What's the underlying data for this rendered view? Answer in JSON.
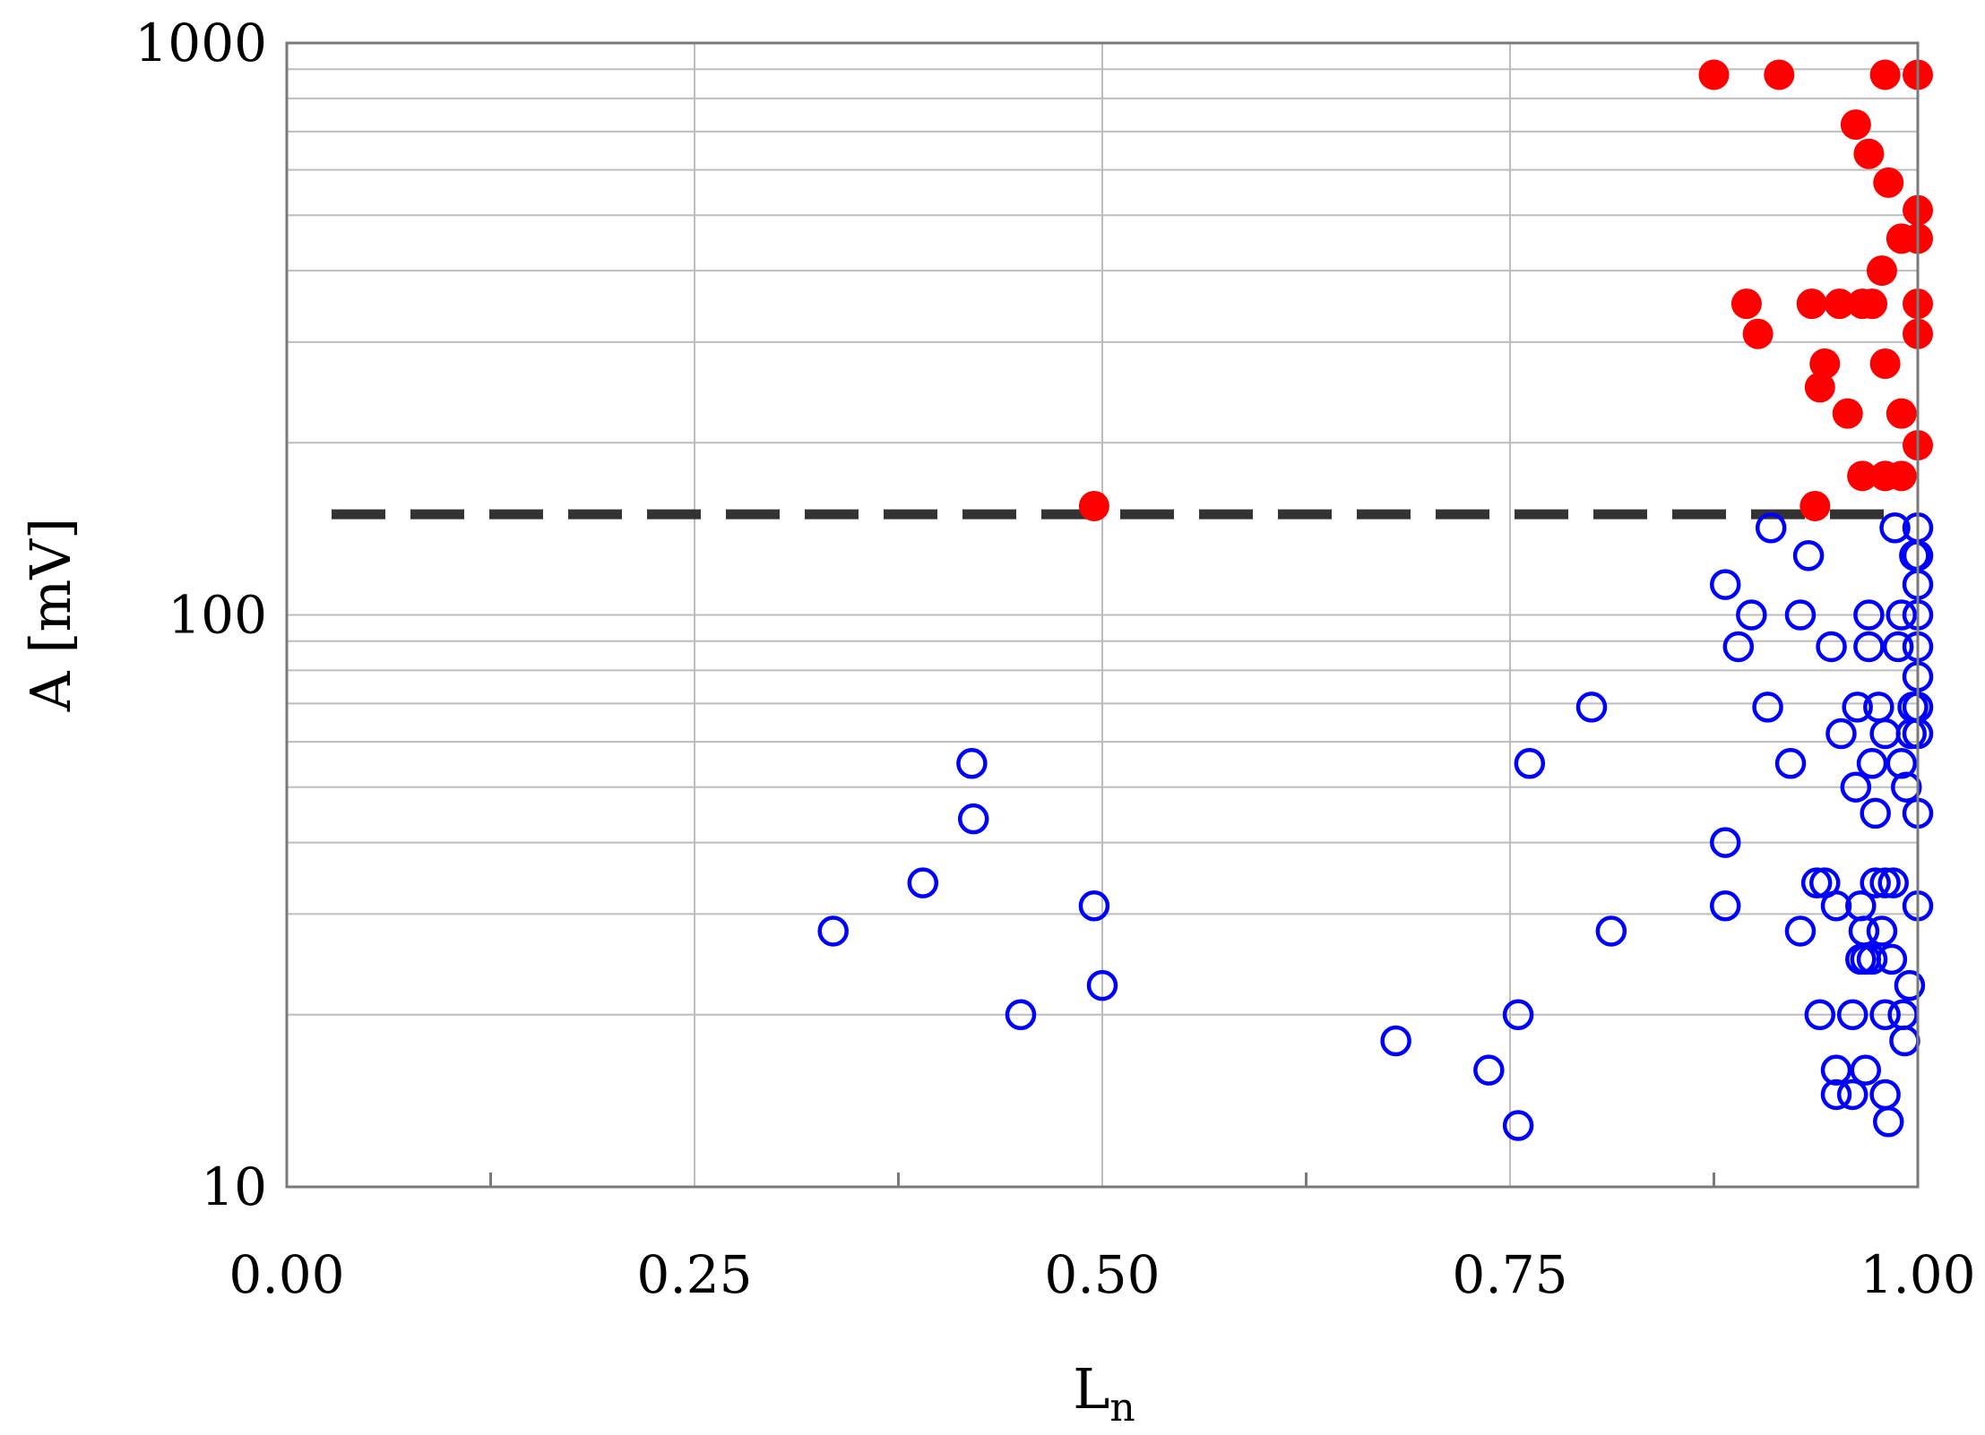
{
  "chart_data": {
    "type": "scatter",
    "title": "",
    "xlabel": "L",
    "xlabel_sub": "n",
    "ylabel": "A [mV]",
    "xlim": [
      0,
      1
    ],
    "ylim": [
      10,
      1000
    ],
    "yscale": "log",
    "grid": true,
    "x_ticks": [
      "0.00",
      "0.25",
      "0.50",
      "0.75",
      "1.00"
    ],
    "y_ticks": [
      "10",
      "100",
      "1000"
    ],
    "threshold": {
      "y": 150,
      "color": "#333333",
      "style": "dashed"
    },
    "series": [
      {
        "marker": "filled-circle",
        "color": "#ff0000",
        "points": [
          [
            0.875,
            880
          ],
          [
            0.915,
            880
          ],
          [
            0.98,
            880
          ],
          [
            1.0,
            880
          ],
          [
            0.962,
            720
          ],
          [
            0.97,
            640
          ],
          [
            0.982,
            570
          ],
          [
            1.0,
            510
          ],
          [
            0.99,
            455
          ],
          [
            1.0,
            455
          ],
          [
            0.978,
            400
          ],
          [
            0.895,
            350
          ],
          [
            0.935,
            350
          ],
          [
            0.952,
            350
          ],
          [
            0.966,
            350
          ],
          [
            0.972,
            350
          ],
          [
            1.0,
            350
          ],
          [
            0.902,
            310
          ],
          [
            1.0,
            310
          ],
          [
            0.943,
            275
          ],
          [
            0.98,
            275
          ],
          [
            0.94,
            250
          ],
          [
            0.957,
            225
          ],
          [
            0.99,
            225
          ],
          [
            1.0,
            198
          ],
          [
            0.966,
            175
          ],
          [
            0.98,
            175
          ],
          [
            0.99,
            175
          ],
          [
            0.495,
            155
          ],
          [
            0.937,
            155
          ]
        ]
      },
      {
        "marker": "open-circle",
        "color": "#0000ff",
        "points": [
          [
            0.335,
            28
          ],
          [
            0.39,
            34
          ],
          [
            0.42,
            55
          ],
          [
            0.421,
            44
          ],
          [
            0.45,
            20
          ],
          [
            0.495,
            31
          ],
          [
            0.5,
            22.5
          ],
          [
            0.68,
            18
          ],
          [
            0.737,
            16
          ],
          [
            0.755,
            20
          ],
          [
            0.755,
            12.8
          ],
          [
            0.762,
            55
          ],
          [
            0.8,
            69
          ],
          [
            0.812,
            28
          ],
          [
            0.882,
            113
          ],
          [
            0.882,
            40
          ],
          [
            0.882,
            31
          ],
          [
            0.89,
            88
          ],
          [
            0.898,
            100
          ],
          [
            0.908,
            69
          ],
          [
            0.91,
            142
          ],
          [
            0.922,
            55
          ],
          [
            0.928,
            100
          ],
          [
            0.928,
            28
          ],
          [
            0.933,
            127
          ],
          [
            0.938,
            34
          ],
          [
            0.94,
            20
          ],
          [
            0.943,
            34
          ],
          [
            0.947,
            88
          ],
          [
            0.95,
            31
          ],
          [
            0.95,
            16
          ],
          [
            0.95,
            14.5
          ],
          [
            0.953,
            62
          ],
          [
            0.96,
            20
          ],
          [
            0.96,
            14.5
          ],
          [
            0.962,
            50
          ],
          [
            0.963,
            69
          ],
          [
            0.965,
            31
          ],
          [
            0.965,
            25
          ],
          [
            0.967,
            28
          ],
          [
            0.968,
            16
          ],
          [
            0.968,
            25
          ],
          [
            0.97,
            88
          ],
          [
            0.97,
            100
          ],
          [
            0.972,
            55
          ],
          [
            0.972,
            25
          ],
          [
            0.974,
            34
          ],
          [
            0.974,
            45
          ],
          [
            0.976,
            69
          ],
          [
            0.978,
            28
          ],
          [
            0.98,
            62
          ],
          [
            0.98,
            34
          ],
          [
            0.98,
            20
          ],
          [
            0.98,
            14.5
          ],
          [
            0.982,
            13
          ],
          [
            0.984,
            25
          ],
          [
            0.985,
            34
          ],
          [
            0.986,
            142
          ],
          [
            0.988,
            88
          ],
          [
            0.99,
            100
          ],
          [
            0.99,
            55
          ],
          [
            0.991,
            20
          ],
          [
            0.992,
            18
          ],
          [
            0.993,
            50
          ],
          [
            0.995,
            22.5
          ],
          [
            0.996,
            62
          ],
          [
            0.997,
            69
          ],
          [
            0.998,
            127
          ],
          [
            1.0,
            142
          ],
          [
            1.0,
            127
          ],
          [
            1.0,
            113
          ],
          [
            1.0,
            100
          ],
          [
            1.0,
            88
          ],
          [
            1.0,
            78
          ],
          [
            1.0,
            69
          ],
          [
            1.0,
            62
          ],
          [
            1.0,
            45
          ],
          [
            1.0,
            31
          ]
        ]
      }
    ]
  }
}
